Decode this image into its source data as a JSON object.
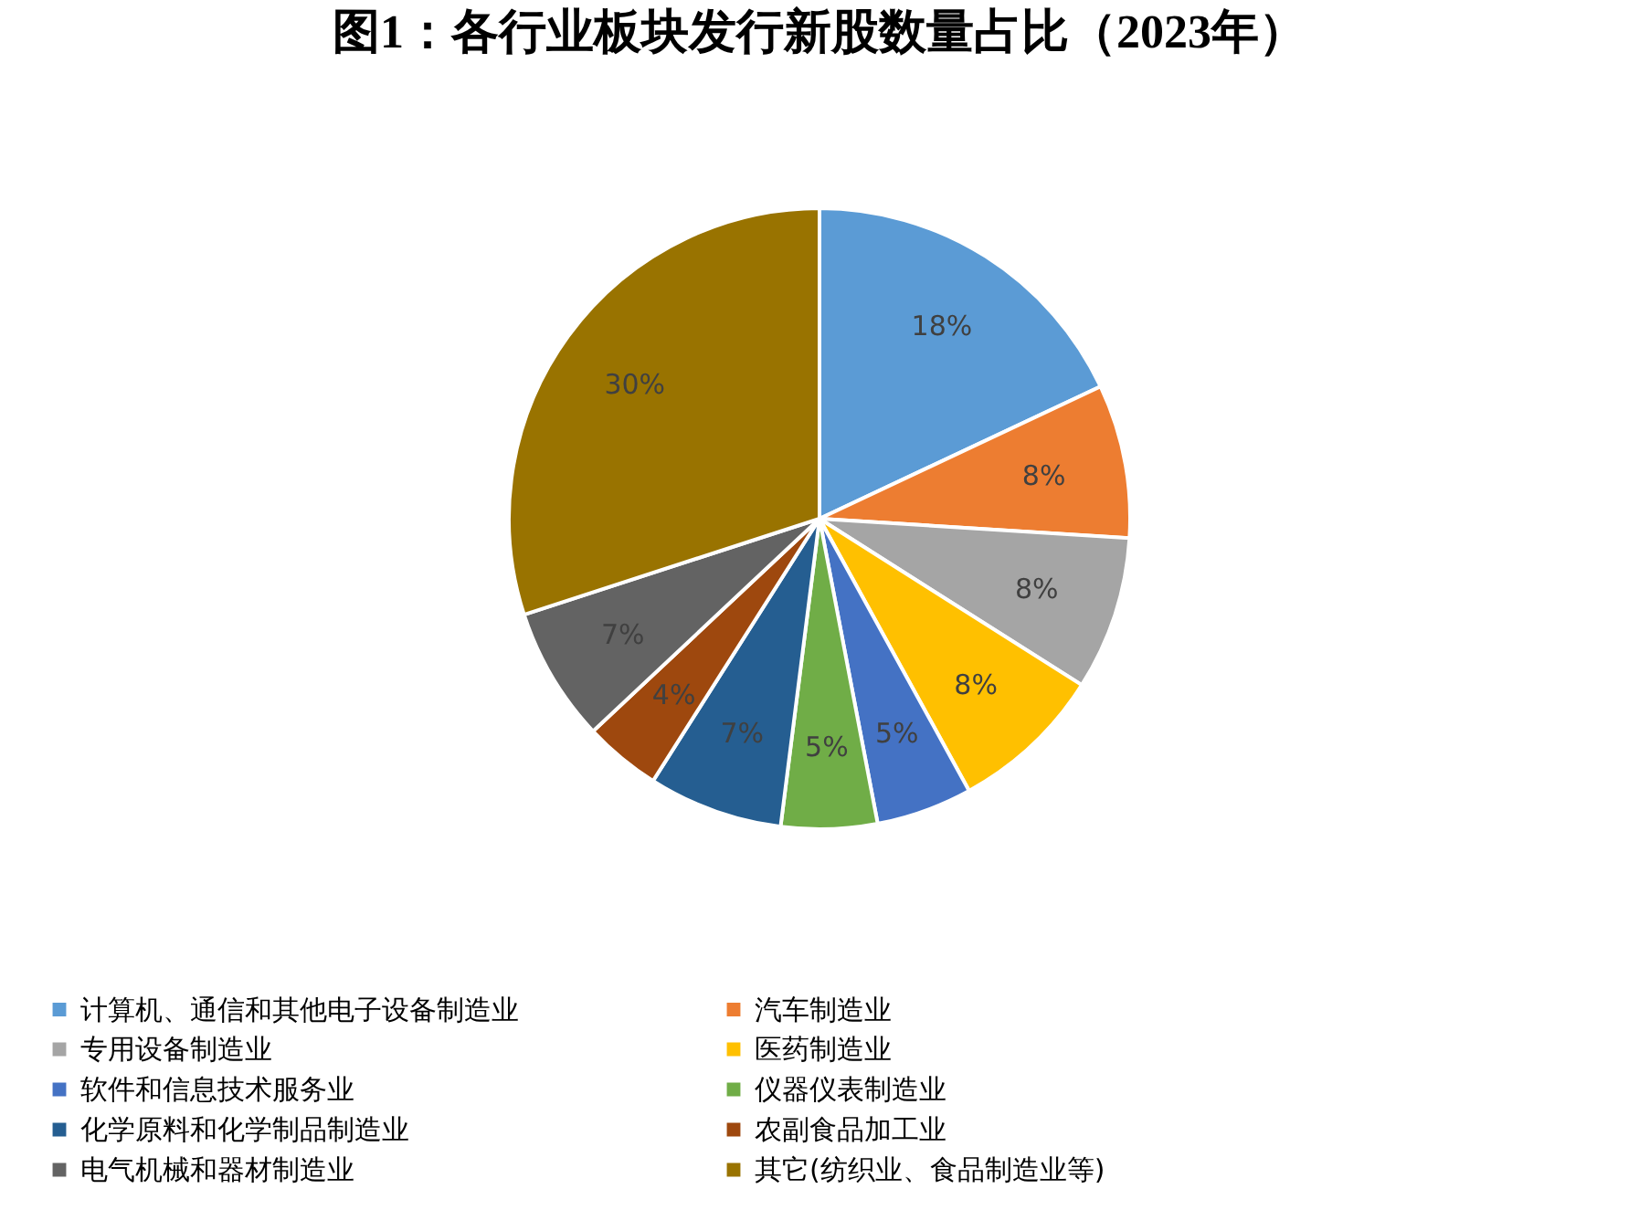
{
  "chart_data": {
    "type": "pie",
    "title": "图1：各行业板块发行新股数量占比（2023年）",
    "categories": [
      "计算机、通信和其他电子设备制造业",
      "汽车制造业",
      "专用设备制造业",
      "医药制造业",
      "软件和信息技术服务业",
      "仪器仪表制造业",
      "化学原料和化学制品制造业",
      "农副食品加工业",
      "电气机械和器材制造业",
      "其它(纺织业、食品制造业等)"
    ],
    "values": [
      18,
      8,
      8,
      8,
      5,
      5,
      7,
      4,
      7,
      30
    ],
    "value_labels": [
      "18%",
      "8%",
      "8%",
      "8%",
      "5%",
      "5%",
      "7%",
      "4%",
      "7%",
      "30%"
    ],
    "colors": [
      "#5b9bd5",
      "#ed7d31",
      "#a5a5a5",
      "#ffc000",
      "#4472c4",
      "#70ad47",
      "#255e91",
      "#9e480e",
      "#636363",
      "#997300"
    ],
    "legend": "bottom"
  }
}
